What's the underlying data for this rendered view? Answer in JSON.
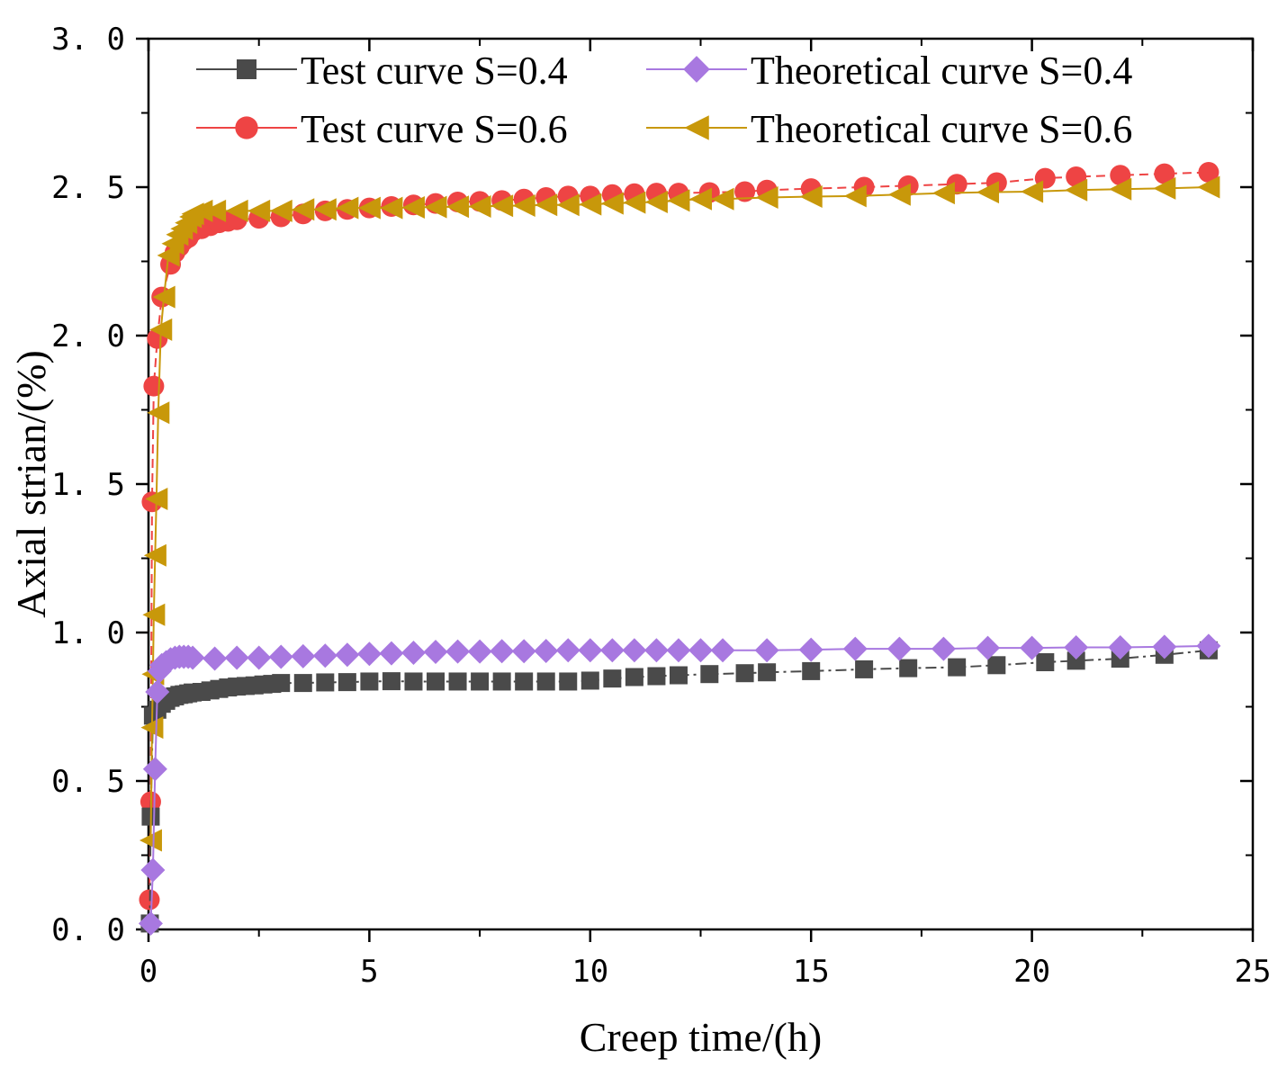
{
  "chart_data": {
    "type": "line",
    "title": "",
    "xlabel": "Creep time/(h)",
    "ylabel": "Axial strian/(%)",
    "xlim": [
      0,
      25
    ],
    "ylim": [
      0,
      3.0
    ],
    "x_ticks": [
      0,
      5,
      10,
      15,
      20,
      25
    ],
    "x_tick_labels": [
      "0",
      "5",
      "10",
      "15",
      "20",
      "25"
    ],
    "y_ticks": [
      0,
      0.5,
      1.0,
      1.5,
      2.0,
      2.5,
      3.0
    ],
    "y_tick_labels": [
      "0. 0",
      "0. 5",
      "1. 0",
      "1. 5",
      "2. 0",
      "2. 5",
      "3. 0"
    ],
    "legend_position": "top",
    "series": [
      {
        "name": "Test curve S=0.4",
        "color": "#4a4a4a",
        "marker": "square",
        "dash": "dashdot",
        "points": [
          [
            0.03,
            0.02
          ],
          [
            0.05,
            0.38
          ],
          [
            0.1,
            0.72
          ],
          [
            0.2,
            0.74
          ],
          [
            0.3,
            0.76
          ],
          [
            0.4,
            0.77
          ],
          [
            0.5,
            0.78
          ],
          [
            0.6,
            0.785
          ],
          [
            0.7,
            0.79
          ],
          [
            0.8,
            0.792
          ],
          [
            0.9,
            0.795
          ],
          [
            1.0,
            0.798
          ],
          [
            1.2,
            0.8
          ],
          [
            1.4,
            0.805
          ],
          [
            1.6,
            0.81
          ],
          [
            1.8,
            0.815
          ],
          [
            2.0,
            0.818
          ],
          [
            2.2,
            0.82
          ],
          [
            2.4,
            0.822
          ],
          [
            2.6,
            0.825
          ],
          [
            2.8,
            0.827
          ],
          [
            3.0,
            0.83
          ],
          [
            3.5,
            0.83
          ],
          [
            4.0,
            0.832
          ],
          [
            4.5,
            0.833
          ],
          [
            5.0,
            0.835
          ],
          [
            5.5,
            0.836
          ],
          [
            6.0,
            0.835
          ],
          [
            6.5,
            0.835
          ],
          [
            7.0,
            0.835
          ],
          [
            7.5,
            0.835
          ],
          [
            8.0,
            0.835
          ],
          [
            8.5,
            0.835
          ],
          [
            9.0,
            0.835
          ],
          [
            9.5,
            0.835
          ],
          [
            10.0,
            0.838
          ],
          [
            10.5,
            0.845
          ],
          [
            11.0,
            0.85
          ],
          [
            11.5,
            0.853
          ],
          [
            12.0,
            0.856
          ],
          [
            12.7,
            0.86
          ],
          [
            13.5,
            0.863
          ],
          [
            14.0,
            0.866
          ],
          [
            15.0,
            0.87
          ],
          [
            16.2,
            0.876
          ],
          [
            17.2,
            0.88
          ],
          [
            18.3,
            0.883
          ],
          [
            19.2,
            0.89
          ],
          [
            20.3,
            0.9
          ],
          [
            21.0,
            0.905
          ],
          [
            22.0,
            0.912
          ],
          [
            23.0,
            0.925
          ],
          [
            24.0,
            0.94
          ]
        ]
      },
      {
        "name": "Theoretical curve S=0.4",
        "color": "#a878e0",
        "marker": "diamond",
        "dash": "solid",
        "points": [
          [
            0.05,
            0.02
          ],
          [
            0.1,
            0.2
          ],
          [
            0.15,
            0.54
          ],
          [
            0.2,
            0.8
          ],
          [
            0.25,
            0.87
          ],
          [
            0.3,
            0.89
          ],
          [
            0.4,
            0.9
          ],
          [
            0.5,
            0.91
          ],
          [
            0.6,
            0.915
          ],
          [
            0.7,
            0.918
          ],
          [
            0.8,
            0.918
          ],
          [
            0.9,
            0.918
          ],
          [
            1.0,
            0.915
          ],
          [
            1.5,
            0.912
          ],
          [
            2.0,
            0.915
          ],
          [
            2.5,
            0.915
          ],
          [
            3.0,
            0.918
          ],
          [
            3.5,
            0.92
          ],
          [
            4.0,
            0.922
          ],
          [
            4.5,
            0.925
          ],
          [
            5.0,
            0.928
          ],
          [
            5.5,
            0.93
          ],
          [
            6.0,
            0.932
          ],
          [
            6.5,
            0.935
          ],
          [
            7.0,
            0.936
          ],
          [
            7.5,
            0.936
          ],
          [
            8.0,
            0.937
          ],
          [
            8.5,
            0.937
          ],
          [
            9.0,
            0.938
          ],
          [
            9.5,
            0.94
          ],
          [
            10.0,
            0.94
          ],
          [
            10.5,
            0.94
          ],
          [
            11.0,
            0.94
          ],
          [
            11.5,
            0.94
          ],
          [
            12.0,
            0.94
          ],
          [
            12.5,
            0.94
          ],
          [
            13.0,
            0.94
          ],
          [
            14.0,
            0.94
          ],
          [
            15.0,
            0.942
          ],
          [
            16.0,
            0.945
          ],
          [
            17.0,
            0.945
          ],
          [
            18.0,
            0.945
          ],
          [
            19.0,
            0.948
          ],
          [
            20.0,
            0.948
          ],
          [
            21.0,
            0.95
          ],
          [
            22.0,
            0.95
          ],
          [
            23.0,
            0.952
          ],
          [
            24.0,
            0.955
          ]
        ]
      },
      {
        "name": "Test curve S=0.6",
        "color": "#ee4444",
        "marker": "circle",
        "dash": "dashed",
        "points": [
          [
            0.02,
            0.1
          ],
          [
            0.05,
            0.43
          ],
          [
            0.08,
            1.44
          ],
          [
            0.12,
            1.83
          ],
          [
            0.2,
            1.99
          ],
          [
            0.3,
            2.13
          ],
          [
            0.5,
            2.24
          ],
          [
            0.6,
            2.28
          ],
          [
            0.7,
            2.3
          ],
          [
            0.8,
            2.32
          ],
          [
            0.9,
            2.33
          ],
          [
            1.0,
            2.35
          ],
          [
            1.2,
            2.36
          ],
          [
            1.4,
            2.37
          ],
          [
            1.6,
            2.38
          ],
          [
            1.8,
            2.385
          ],
          [
            2.0,
            2.39
          ],
          [
            2.5,
            2.395
          ],
          [
            3.0,
            2.4
          ],
          [
            3.5,
            2.41
          ],
          [
            4.0,
            2.42
          ],
          [
            4.5,
            2.425
          ],
          [
            5.0,
            2.43
          ],
          [
            5.5,
            2.435
          ],
          [
            6.0,
            2.44
          ],
          [
            6.5,
            2.445
          ],
          [
            7.0,
            2.45
          ],
          [
            7.5,
            2.452
          ],
          [
            8.0,
            2.455
          ],
          [
            8.5,
            2.46
          ],
          [
            9.0,
            2.465
          ],
          [
            9.5,
            2.47
          ],
          [
            10.0,
            2.47
          ],
          [
            10.5,
            2.475
          ],
          [
            11.0,
            2.478
          ],
          [
            11.5,
            2.48
          ],
          [
            12.0,
            2.48
          ],
          [
            12.7,
            2.482
          ],
          [
            13.5,
            2.485
          ],
          [
            14.0,
            2.49
          ],
          [
            15.0,
            2.495
          ],
          [
            16.2,
            2.5
          ],
          [
            17.2,
            2.505
          ],
          [
            18.3,
            2.51
          ],
          [
            19.2,
            2.515
          ],
          [
            20.3,
            2.53
          ],
          [
            21.0,
            2.535
          ],
          [
            22.0,
            2.54
          ],
          [
            23.0,
            2.545
          ],
          [
            24.0,
            2.55
          ]
        ]
      },
      {
        "name": "Theoretical curve S=0.6",
        "color": "#c8980a",
        "marker": "triangle-left",
        "dash": "solid",
        "points": [
          [
            0.05,
            0.3
          ],
          [
            0.08,
            0.68
          ],
          [
            0.1,
            0.86
          ],
          [
            0.12,
            1.06
          ],
          [
            0.15,
            1.26
          ],
          [
            0.18,
            1.45
          ],
          [
            0.22,
            1.74
          ],
          [
            0.28,
            2.02
          ],
          [
            0.35,
            2.13
          ],
          [
            0.45,
            2.27
          ],
          [
            0.55,
            2.31
          ],
          [
            0.65,
            2.34
          ],
          [
            0.75,
            2.36
          ],
          [
            0.85,
            2.38
          ],
          [
            0.95,
            2.4
          ],
          [
            1.0,
            2.41
          ],
          [
            1.2,
            2.42
          ],
          [
            1.5,
            2.42
          ],
          [
            2.0,
            2.42
          ],
          [
            2.5,
            2.42
          ],
          [
            3.0,
            2.42
          ],
          [
            3.5,
            2.425
          ],
          [
            4.0,
            2.425
          ],
          [
            4.5,
            2.43
          ],
          [
            5.0,
            2.43
          ],
          [
            5.5,
            2.43
          ],
          [
            6.0,
            2.432
          ],
          [
            6.5,
            2.433
          ],
          [
            7.0,
            2.434
          ],
          [
            7.5,
            2.435
          ],
          [
            8.0,
            2.437
          ],
          [
            8.5,
            2.438
          ],
          [
            9.0,
            2.44
          ],
          [
            9.5,
            2.44
          ],
          [
            10.0,
            2.442
          ],
          [
            10.5,
            2.445
          ],
          [
            11.0,
            2.448
          ],
          [
            11.5,
            2.45
          ],
          [
            12.0,
            2.455
          ],
          [
            12.5,
            2.46
          ],
          [
            13.0,
            2.46
          ],
          [
            14.0,
            2.465
          ],
          [
            15.0,
            2.468
          ],
          [
            16.0,
            2.47
          ],
          [
            17.0,
            2.475
          ],
          [
            18.0,
            2.48
          ],
          [
            19.0,
            2.483
          ],
          [
            20.0,
            2.485
          ],
          [
            21.0,
            2.49
          ],
          [
            22.0,
            2.493
          ],
          [
            23.0,
            2.496
          ],
          [
            24.0,
            2.5
          ]
        ]
      }
    ]
  }
}
